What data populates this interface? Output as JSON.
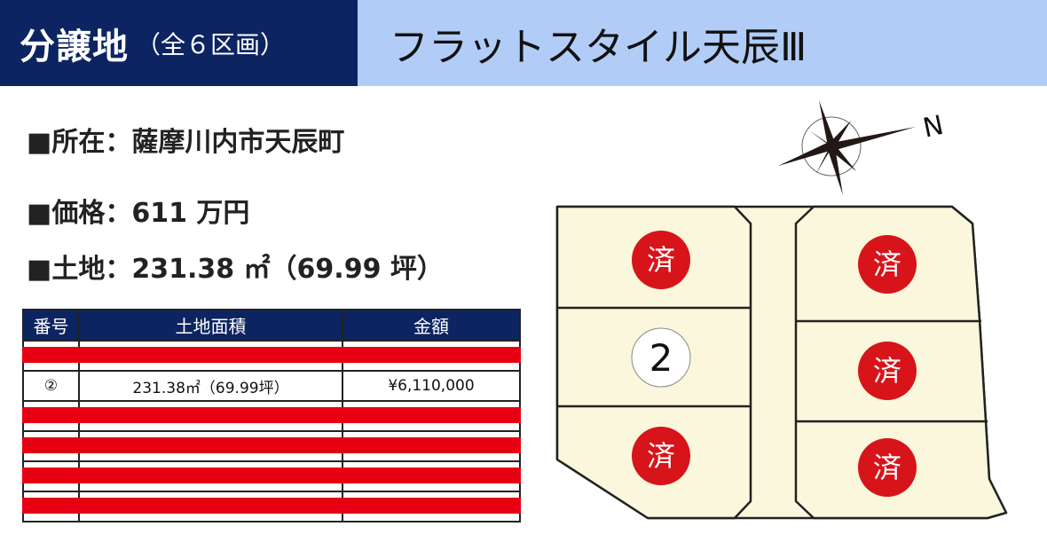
{
  "header": {
    "title": "分譲地",
    "subtitle": "（全６区画）",
    "property_name": "フラットスタイル天辰Ⅲ"
  },
  "info": {
    "location": "■所在：薩摩川内市天辰町",
    "price": "■価格：611 万円",
    "land": "■土地：231.38 ㎡（69.99 坪）"
  },
  "table": {
    "headers": [
      "番号",
      "土地面積",
      "金額"
    ],
    "rows": [
      {
        "no": "",
        "area": "",
        "price": "",
        "sold": true
      },
      {
        "no": "②",
        "area": "231.38㎡（69.99坪）",
        "price": "¥6,110,000",
        "sold": false
      },
      {
        "no": "",
        "area": "",
        "price": "",
        "sold": true
      },
      {
        "no": "",
        "area": "",
        "price": "",
        "sold": true
      },
      {
        "no": "",
        "area": "",
        "price": "",
        "sold": true
      },
      {
        "no": "",
        "area": "",
        "price": "",
        "sold": true
      }
    ]
  },
  "map": {
    "compass_label": "N",
    "sold_label": "済",
    "available_lot": "2",
    "colors": {
      "lot": "#faf7dc",
      "sold": "#d7141a",
      "navy": "#0c2461",
      "header_light": "#b1cdf7"
    }
  }
}
